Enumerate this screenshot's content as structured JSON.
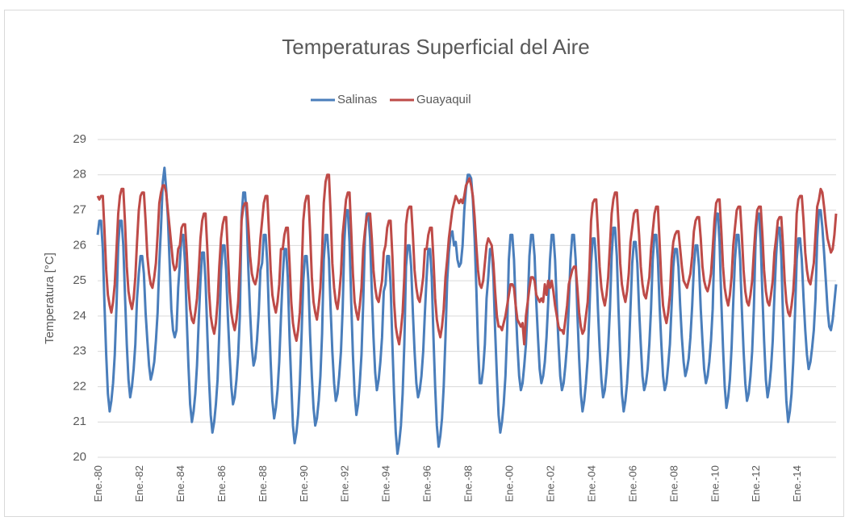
{
  "chart_data": {
    "type": "line",
    "title": "Temperaturas Superficial del Aire",
    "ylabel": "Temperatura [°C]",
    "categories": [
      "Ene.-80",
      null,
      null,
      null,
      null,
      null,
      null,
      null,
      null,
      null,
      null,
      null,
      null,
      null,
      null,
      null,
      null,
      null,
      null,
      null,
      null,
      null,
      null,
      null,
      "Ene.-82",
      null,
      null,
      null,
      null,
      null,
      null,
      null,
      null,
      null,
      null,
      null,
      null,
      null,
      null,
      null,
      null,
      null,
      null,
      null,
      null,
      null,
      null,
      null,
      "Ene.-84",
      null,
      null,
      null,
      null,
      null,
      null,
      null,
      null,
      null,
      null,
      null,
      null,
      null,
      null,
      null,
      null,
      null,
      null,
      null,
      null,
      null,
      null,
      null,
      "Ene.-86",
      null,
      null,
      null,
      null,
      null,
      null,
      null,
      null,
      null,
      null,
      null,
      null,
      null,
      null,
      null,
      null,
      null,
      null,
      null,
      null,
      null,
      null,
      null,
      "Ene.-88",
      null,
      null,
      null,
      null,
      null,
      null,
      null,
      null,
      null,
      null,
      null,
      null,
      null,
      null,
      null,
      null,
      null,
      null,
      null,
      null,
      null,
      null,
      null,
      "Ene.-90",
      null,
      null,
      null,
      null,
      null,
      null,
      null,
      null,
      null,
      null,
      null,
      null,
      null,
      null,
      null,
      null,
      null,
      null,
      null,
      null,
      null,
      null,
      null,
      "Ene.-92",
      null,
      null,
      null,
      null,
      null,
      null,
      null,
      null,
      null,
      null,
      null,
      null,
      null,
      null,
      null,
      null,
      null,
      null,
      null,
      null,
      null,
      null,
      null,
      "Ene.-94",
      null,
      null,
      null,
      null,
      null,
      null,
      null,
      null,
      null,
      null,
      null,
      null,
      null,
      null,
      null,
      null,
      null,
      null,
      null,
      null,
      null,
      null,
      null,
      "Ene.-96",
      null,
      null,
      null,
      null,
      null,
      null,
      null,
      null,
      null,
      null,
      null,
      null,
      null,
      null,
      null,
      null,
      null,
      null,
      null,
      null,
      null,
      null,
      null,
      "Ene.-98",
      null,
      null,
      null,
      null,
      null,
      null,
      null,
      null,
      null,
      null,
      null,
      null,
      null,
      null,
      null,
      null,
      null,
      null,
      null,
      null,
      null,
      null,
      null,
      "Ene.-00",
      null,
      null,
      null,
      null,
      null,
      null,
      null,
      null,
      null,
      null,
      null,
      null,
      null,
      null,
      null,
      null,
      null,
      null,
      null,
      null,
      null,
      null,
      null,
      "Ene.-02",
      null,
      null,
      null,
      null,
      null,
      null,
      null,
      null,
      null,
      null,
      null,
      null,
      null,
      null,
      null,
      null,
      null,
      null,
      null,
      null,
      null,
      null,
      null,
      "Ene.-04",
      null,
      null,
      null,
      null,
      null,
      null,
      null,
      null,
      null,
      null,
      null,
      null,
      null,
      null,
      null,
      null,
      null,
      null,
      null,
      null,
      null,
      null,
      null,
      "Ene.-06",
      null,
      null,
      null,
      null,
      null,
      null,
      null,
      null,
      null,
      null,
      null,
      null,
      null,
      null,
      null,
      null,
      null,
      null,
      null,
      null,
      null,
      null,
      null,
      "Ene.-08",
      null,
      null,
      null,
      null,
      null,
      null,
      null,
      null,
      null,
      null,
      null,
      null,
      null,
      null,
      null,
      null,
      null,
      null,
      null,
      null,
      null,
      null,
      null,
      "Ene.-10",
      null,
      null,
      null,
      null,
      null,
      null,
      null,
      null,
      null,
      null,
      null,
      null,
      null,
      null,
      null,
      null,
      null,
      null,
      null,
      null,
      null,
      null,
      null,
      "Ene.-12",
      null,
      null,
      null,
      null,
      null,
      null,
      null,
      null,
      null,
      null,
      null,
      null,
      null,
      null,
      null,
      null,
      null,
      null,
      null,
      null,
      null,
      null,
      null,
      "Ene.-14",
      null,
      null,
      null,
      null,
      null,
      null,
      null,
      null,
      null,
      null,
      null,
      null,
      null,
      null,
      null,
      null,
      null,
      null,
      null,
      null,
      null,
      null,
      null
    ],
    "series": [
      {
        "name": "Salinas",
        "color": "#4a7ebb",
        "values": [
          26.3,
          26.7,
          26.7,
          25.9,
          24.3,
          22.9,
          21.8,
          21.3,
          21.6,
          22.1,
          22.9,
          24.3,
          26.0,
          26.7,
          26.7,
          26.0,
          24.5,
          23.2,
          22.2,
          21.7,
          22.0,
          22.5,
          23.2,
          24.5,
          25.2,
          25.7,
          25.7,
          25.2,
          24.1,
          23.3,
          22.6,
          22.2,
          22.4,
          22.7,
          23.3,
          24.1,
          25.5,
          26.5,
          27.8,
          28.2,
          27.6,
          26.8,
          25.5,
          24.2,
          23.6,
          23.4,
          23.6,
          24.8,
          25.5,
          26.3,
          26.3,
          25.5,
          23.9,
          22.6,
          21.5,
          21.0,
          21.3,
          21.8,
          22.6,
          23.9,
          25.0,
          25.8,
          25.8,
          25.0,
          23.5,
          22.2,
          21.2,
          20.7,
          21.0,
          21.5,
          22.2,
          23.5,
          25.3,
          26.0,
          26.0,
          25.3,
          24.0,
          22.9,
          22.0,
          21.5,
          21.7,
          22.2,
          22.9,
          24.0,
          26.8,
          27.5,
          27.5,
          26.8,
          25.3,
          24.1,
          23.1,
          22.6,
          22.8,
          23.3,
          24.1,
          25.3,
          25.5,
          26.3,
          26.3,
          25.5,
          24.0,
          22.7,
          21.6,
          21.1,
          21.4,
          21.9,
          22.7,
          24.0,
          25.1,
          25.9,
          25.9,
          25.1,
          23.4,
          22.1,
          20.9,
          20.4,
          20.7,
          21.2,
          22.1,
          23.4,
          25.0,
          25.7,
          25.7,
          25.0,
          23.5,
          22.3,
          21.4,
          20.9,
          21.1,
          21.6,
          22.3,
          23.5,
          25.6,
          26.3,
          26.3,
          25.6,
          24.2,
          23.0,
          22.1,
          21.6,
          21.8,
          22.3,
          23.0,
          24.2,
          26.1,
          27.0,
          27.0,
          26.1,
          24.4,
          22.9,
          21.8,
          21.2,
          21.5,
          22.1,
          22.9,
          24.4,
          26.2,
          26.9,
          26.9,
          26.2,
          24.7,
          23.4,
          22.4,
          21.9,
          22.2,
          22.7,
          23.4,
          24.7,
          24.9,
          25.7,
          25.7,
          24.9,
          23.2,
          21.8,
          20.7,
          20.1,
          20.4,
          20.9,
          21.8,
          23.2,
          25.4,
          26.0,
          26.0,
          25.4,
          24.1,
          23.0,
          22.1,
          21.7,
          21.9,
          22.3,
          23.0,
          24.1,
          25.1,
          25.9,
          25.9,
          25.1,
          23.4,
          22.0,
          20.9,
          20.3,
          20.6,
          21.1,
          22.0,
          23.4,
          25.0,
          25.8,
          26.3,
          26.4,
          26.0,
          26.1,
          25.6,
          25.4,
          25.5,
          26.0,
          27.0,
          27.6,
          28.0,
          28.0,
          27.9,
          27.3,
          26.2,
          24.8,
          23.2,
          22.1,
          22.1,
          22.5,
          23.2,
          24.5,
          25.1,
          25.9,
          25.9,
          25.1,
          23.6,
          22.3,
          21.2,
          20.7,
          21.0,
          21.5,
          22.3,
          23.6,
          25.6,
          26.3,
          26.3,
          25.6,
          24.3,
          23.2,
          22.3,
          21.9,
          22.1,
          22.6,
          23.2,
          24.3,
          25.7,
          26.3,
          26.3,
          25.7,
          24.4,
          23.4,
          22.5,
          22.1,
          22.3,
          22.7,
          23.4,
          24.4,
          25.6,
          26.3,
          26.3,
          25.6,
          24.3,
          23.2,
          22.3,
          21.9,
          22.1,
          22.6,
          23.2,
          24.3,
          25.6,
          26.3,
          26.3,
          25.6,
          24.1,
          22.8,
          21.8,
          21.3,
          21.6,
          22.1,
          22.8,
          24.1,
          25.5,
          26.2,
          26.2,
          25.5,
          24.2,
          23.1,
          22.2,
          21.7,
          21.9,
          22.4,
          23.1,
          24.2,
          25.7,
          26.5,
          26.5,
          25.7,
          24.2,
          22.9,
          21.8,
          21.3,
          21.6,
          22.1,
          22.9,
          24.2,
          25.5,
          26.1,
          26.1,
          25.5,
          24.2,
          23.2,
          22.3,
          21.9,
          22.1,
          22.5,
          23.2,
          24.2,
          25.6,
          26.3,
          26.3,
          25.6,
          24.3,
          23.2,
          22.3,
          21.9,
          22.1,
          22.6,
          23.2,
          24.3,
          25.4,
          25.9,
          25.9,
          25.4,
          24.3,
          23.4,
          22.7,
          22.3,
          22.5,
          22.8,
          23.4,
          24.3,
          25.4,
          26.0,
          26.0,
          25.4,
          24.2,
          23.3,
          22.5,
          22.1,
          22.3,
          22.7,
          23.3,
          24.2,
          26.1,
          26.9,
          26.9,
          26.1,
          24.4,
          23.1,
          22.0,
          21.4,
          21.7,
          22.2,
          23.1,
          24.4,
          25.6,
          26.3,
          26.3,
          25.6,
          24.2,
          23.0,
          22.1,
          21.6,
          21.8,
          22.3,
          23.0,
          24.2,
          26.1,
          26.9,
          26.9,
          26.1,
          24.6,
          23.3,
          22.2,
          21.7,
          22.0,
          22.5,
          23.3,
          24.6,
          25.7,
          26.5,
          26.5,
          25.7,
          24.0,
          22.7,
          21.6,
          21.0,
          21.3,
          21.8,
          22.7,
          24.0,
          25.6,
          26.2,
          26.2,
          25.6,
          24.5,
          23.6,
          22.9,
          22.5,
          22.7,
          23.1,
          23.6,
          24.5,
          26.2,
          27.0,
          27.0,
          26.5,
          25.8,
          25.0,
          24.2,
          23.7,
          23.6,
          23.9,
          24.4,
          24.9
        ]
      },
      {
        "name": "Guayaquil",
        "color": "#be4b48",
        "values": [
          27.4,
          27.3,
          27.4,
          27.4,
          26.4,
          25.3,
          24.6,
          24.3,
          24.1,
          24.4,
          24.9,
          25.9,
          26.9,
          27.4,
          27.6,
          27.6,
          26.6,
          25.4,
          24.7,
          24.4,
          24.2,
          24.5,
          25.1,
          26.1,
          27.0,
          27.4,
          27.5,
          27.5,
          26.7,
          25.7,
          25.2,
          24.9,
          24.8,
          25.1,
          25.5,
          26.3,
          27.2,
          27.5,
          27.7,
          27.7,
          27.5,
          27.0,
          26.5,
          26.0,
          25.5,
          25.3,
          25.4,
          25.9,
          26.0,
          26.5,
          26.6,
          26.6,
          25.8,
          24.8,
          24.2,
          23.9,
          23.8,
          24.1,
          24.5,
          25.3,
          26.2,
          26.7,
          26.9,
          26.9,
          25.9,
          24.7,
          24.0,
          23.7,
          23.5,
          23.8,
          24.4,
          25.4,
          26.2,
          26.6,
          26.8,
          26.8,
          25.8,
          24.7,
          24.1,
          23.8,
          23.6,
          23.9,
          24.4,
          25.4,
          26.7,
          27.1,
          27.2,
          27.2,
          26.5,
          25.7,
          25.2,
          25.0,
          24.9,
          25.1,
          25.5,
          26.2,
          26.7,
          27.2,
          27.4,
          27.4,
          26.4,
          25.3,
          24.6,
          24.3,
          24.1,
          24.4,
          24.9,
          25.9,
          25.9,
          26.3,
          26.5,
          26.5,
          25.5,
          24.4,
          23.8,
          23.5,
          23.3,
          23.6,
          24.1,
          25.1,
          26.7,
          27.2,
          27.4,
          27.4,
          26.4,
          25.1,
          24.4,
          24.1,
          23.9,
          24.3,
          24.8,
          25.8,
          27.2,
          27.8,
          28.0,
          28.0,
          26.9,
          25.5,
          24.8,
          24.4,
          24.2,
          24.6,
          25.2,
          26.3,
          26.8,
          27.3,
          27.5,
          27.5,
          26.4,
          25.2,
          24.4,
          24.1,
          23.9,
          24.3,
          24.8,
          25.9,
          26.4,
          26.8,
          26.9,
          26.9,
          26.2,
          25.3,
          24.8,
          24.5,
          24.4,
          24.7,
          25.0,
          25.8,
          26.0,
          26.5,
          26.7,
          26.7,
          25.7,
          24.4,
          23.7,
          23.4,
          23.2,
          23.6,
          24.1,
          25.1,
          26.6,
          27.0,
          27.1,
          27.1,
          26.3,
          25.3,
          24.8,
          24.5,
          24.4,
          24.7,
          25.1,
          25.9,
          25.9,
          26.3,
          26.5,
          26.5,
          25.6,
          24.5,
          23.9,
          23.6,
          23.4,
          23.7,
          24.2,
          25.1,
          25.6,
          26.2,
          26.6,
          27.0,
          27.2,
          27.4,
          27.3,
          27.2,
          27.3,
          27.2,
          27.4,
          27.7,
          27.8,
          27.9,
          27.7,
          27.4,
          26.8,
          26.0,
          25.3,
          24.9,
          24.8,
          25.0,
          25.5,
          26.0,
          26.2,
          26.1,
          26.0,
          25.5,
          24.7,
          24.0,
          23.7,
          23.7,
          23.6,
          23.8,
          24.0,
          24.3,
          24.6,
          24.9,
          24.9,
          24.8,
          24.3,
          23.9,
          23.8,
          23.7,
          23.8,
          23.2,
          24.0,
          24.4,
          24.8,
          25.1,
          25.1,
          25.0,
          24.6,
          24.5,
          24.4,
          24.5,
          24.4,
          24.9,
          24.6,
          25.0,
          24.8,
          25.0,
          24.7,
          24.3,
          24.0,
          23.7,
          23.6,
          23.6,
          23.5,
          23.9,
          24.3,
          24.9,
          25.1,
          25.3,
          25.4,
          25.4,
          24.8,
          24.1,
          23.7,
          23.5,
          23.6,
          24.0,
          24.4,
          25.3,
          26.7,
          27.2,
          27.3,
          27.3,
          26.4,
          25.4,
          24.8,
          24.5,
          24.3,
          24.6,
          25.1,
          26.0,
          26.9,
          27.3,
          27.5,
          27.5,
          26.6,
          25.5,
          24.9,
          24.6,
          24.4,
          24.7,
          25.2,
          26.1,
          26.5,
          26.9,
          27.0,
          27.0,
          26.3,
          25.4,
          24.9,
          24.6,
          24.5,
          24.8,
          25.1,
          25.9,
          26.4,
          26.9,
          27.1,
          27.1,
          26.1,
          25.0,
          24.3,
          24.0,
          23.8,
          24.1,
          24.6,
          25.6,
          26.1,
          26.3,
          26.4,
          26.4,
          25.9,
          25.4,
          25.0,
          24.9,
          24.8,
          25.0,
          25.2,
          25.7,
          26.4,
          26.7,
          26.8,
          26.8,
          26.2,
          25.4,
          25.0,
          24.8,
          24.7,
          24.9,
          25.2,
          25.9,
          26.7,
          27.2,
          27.3,
          27.3,
          26.4,
          25.4,
          24.8,
          24.5,
          24.3,
          24.6,
          25.1,
          26.0,
          26.5,
          27.0,
          27.1,
          27.1,
          26.3,
          25.3,
          24.7,
          24.4,
          24.3,
          24.6,
          25.0,
          25.8,
          26.5,
          27.0,
          27.1,
          27.1,
          26.3,
          25.3,
          24.7,
          24.4,
          24.3,
          24.6,
          25.0,
          25.8,
          26.2,
          26.7,
          26.8,
          26.8,
          26.0,
          25.0,
          24.4,
          24.1,
          24.0,
          24.3,
          24.7,
          25.5,
          26.9,
          27.3,
          27.4,
          27.4,
          26.7,
          25.8,
          25.3,
          25.0,
          24.9,
          25.2,
          25.5,
          26.3,
          27.1,
          27.3,
          27.6,
          27.5,
          27.1,
          26.6,
          26.2,
          26.0,
          25.8,
          25.9,
          26.3,
          26.9
        ]
      }
    ],
    "ylim": [
      20,
      29
    ],
    "yticks": [
      20,
      21,
      22,
      23,
      24,
      25,
      26,
      27,
      28,
      29
    ],
    "grid": true,
    "legend": "top"
  }
}
